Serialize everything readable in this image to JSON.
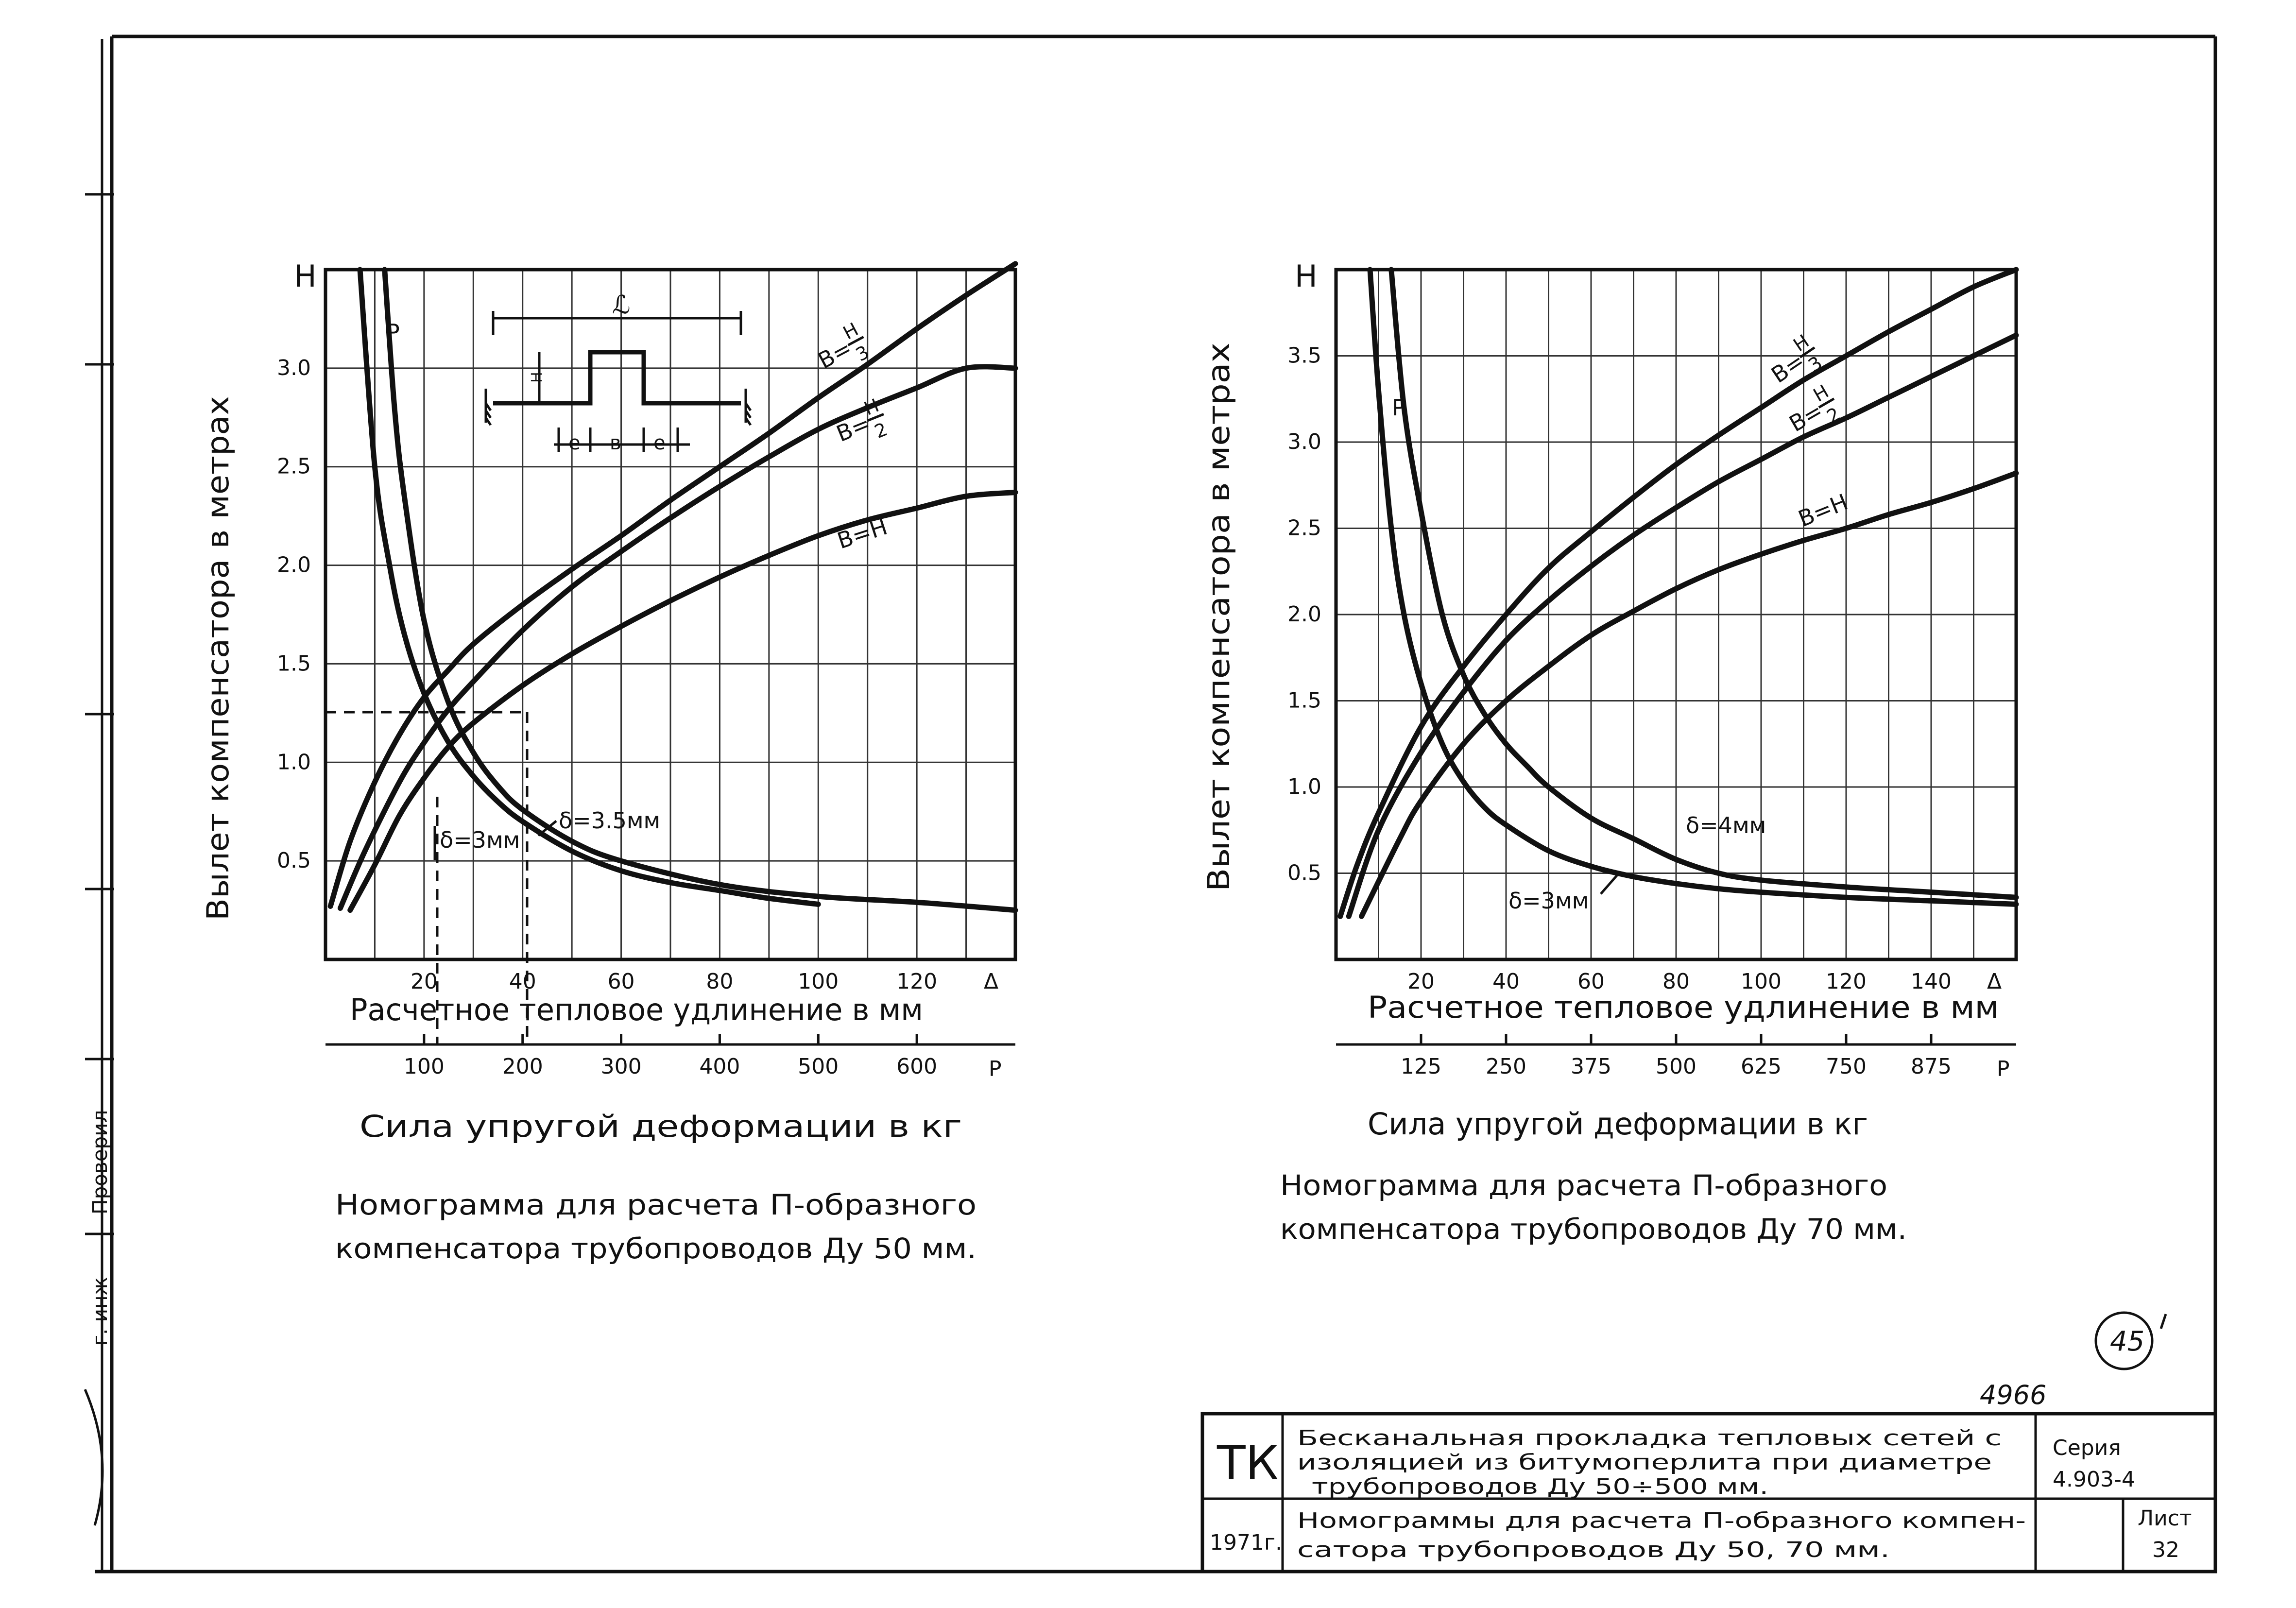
{
  "stamps": {
    "drawing_number": "4966",
    "page_number": "45"
  },
  "side_margin": {
    "checked_label": "Проверил",
    "chief_label": "г. инж"
  },
  "title_block": {
    "logo": "ТК",
    "line1": "Бесканальная прокладка тепловых сетей с",
    "line2": "изоляцией из битумоперлита при диаметре",
    "line3": "трубопроводов Ду 50÷500 мм.",
    "series_label": "Серия",
    "series_value": "4.903-4",
    "year": "1971г.",
    "sheet_title1": "Номограммы для расчета П-образного компен-",
    "sheet_title2": "сатора трубопроводов Ду 50, 70 мм.",
    "sheet_label": "Лист",
    "sheet_number": "32"
  },
  "charts": [
    {
      "ylabel": "Вылет компенсатора в метрах",
      "ymark": "Н",
      "yticks": [
        "3.0",
        "2.5",
        "2.0",
        "1.5",
        "1.0",
        "0.5"
      ],
      "xticks": [
        "20",
        "40",
        "60",
        "80",
        "100",
        "120"
      ],
      "xmark": "Δ",
      "xlabel": "Расчетное тепловое удлинение в мм",
      "pticks": [
        "100",
        "200",
        "300",
        "400",
        "500",
        "600"
      ],
      "pmark": "Р",
      "plabel": "Сила упругой деформации в кг",
      "caption1": "Номограмма для расчета П-образного",
      "caption2": "компенсатора трубопроводов Ду 50 мм.",
      "p_curve_label": "Р",
      "curve_labels": {
        "bh3_prefix": "В=",
        "bh3_num": "Н",
        "bh3_den": "3",
        "bh2_prefix": "В=",
        "bh2_num": "Н",
        "bh2_den": "2",
        "bh": "В=Н",
        "d1": "δ=3мм",
        "d2": "δ=3.5мм"
      },
      "inset": {
        "L": "ℒ",
        "e1": "е",
        "b": "в",
        "e2": "е",
        "h": "Н"
      }
    },
    {
      "ylabel": "Вылет компенсатора в метрах",
      "ymark": "Н",
      "yticks": [
        "3.5",
        "3.0",
        "2.5",
        "2.0",
        "1.5",
        "1.0",
        "0.5"
      ],
      "xticks": [
        "20",
        "40",
        "60",
        "80",
        "100",
        "120",
        "140"
      ],
      "xmark": "Δ",
      "xlabel": "Расчетное тепловое удлинение в мм",
      "pticks": [
        "125",
        "250",
        "375",
        "500",
        "625",
        "750",
        "875"
      ],
      "pmark": "Р",
      "plabel": "Сила упругой деформации в кг",
      "caption1": "Номограмма для расчета П-образного",
      "caption2": "компенсатора трубопроводов Ду 70 мм.",
      "p_curve_label": "Р",
      "curve_labels": {
        "bh3_prefix": "В=",
        "bh3_num": "Н",
        "bh3_den": "3",
        "bh2_prefix": "В=",
        "bh2_num": "Н",
        "bh2_den": "2",
        "bh": "В=Н",
        "d1": "δ=4мм",
        "d2": "δ=3мм"
      }
    }
  ],
  "chart_data": [
    {
      "type": "line",
      "title": "Номограмма для расчета П-образного компенсатора трубопроводов Ду 50 мм.",
      "xlabel": "Расчетное тепловое удлинение в мм",
      "ylabel": "Вылет компенсатора в метрах",
      "secondary_xlabel": "Сила упругой деформации в кг",
      "xlim": [
        0,
        140
      ],
      "ylim": [
        0,
        3.5
      ],
      "pscale": [
        0,
        700
      ],
      "grid": true,
      "series": [
        {
          "name": "В=Н/3",
          "x": [
            1,
            5,
            10,
            15,
            20,
            25,
            30,
            40,
            50,
            60,
            70,
            80,
            90,
            100,
            110,
            120,
            130,
            140
          ],
          "y": [
            0.27,
            0.6,
            0.9,
            1.14,
            1.33,
            1.47,
            1.6,
            1.8,
            1.98,
            2.15,
            2.33,
            2.5,
            2.67,
            2.85,
            3.02,
            3.2,
            3.37,
            3.53
          ]
        },
        {
          "name": "В=Н/2",
          "x": [
            3,
            8,
            15,
            20,
            25,
            30,
            40,
            50,
            60,
            70,
            80,
            90,
            100,
            110,
            120,
            130,
            140
          ],
          "y": [
            0.26,
            0.55,
            0.9,
            1.1,
            1.27,
            1.41,
            1.67,
            1.89,
            2.07,
            2.24,
            2.4,
            2.55,
            2.69,
            2.8,
            2.9,
            3.0,
            3.0
          ]
        },
        {
          "name": "В=Н",
          "x": [
            5,
            10,
            15,
            20,
            25,
            30,
            40,
            50,
            60,
            70,
            80,
            90,
            100,
            110,
            120,
            130,
            140
          ],
          "y": [
            0.25,
            0.48,
            0.73,
            0.92,
            1.08,
            1.2,
            1.39,
            1.55,
            1.69,
            1.82,
            1.94,
            2.05,
            2.15,
            2.23,
            2.29,
            2.35,
            2.37
          ]
        },
        {
          "name": "δ=3мм",
          "x": [
            7,
            10,
            13,
            16,
            20,
            25,
            30,
            35,
            40,
            50,
            60,
            70,
            80,
            90,
            100
          ],
          "y": [
            3.5,
            2.5,
            2.0,
            1.65,
            1.35,
            1.1,
            0.93,
            0.8,
            0.7,
            0.55,
            0.45,
            0.39,
            0.35,
            0.31,
            0.28
          ]
        },
        {
          "name": "δ=3.5мм",
          "x": [
            12,
            14,
            16,
            20,
            25,
            30,
            35,
            40,
            50,
            60,
            80,
            100,
            120,
            140
          ],
          "y": [
            3.5,
            2.8,
            2.35,
            1.72,
            1.3,
            1.05,
            0.88,
            0.76,
            0.6,
            0.5,
            0.38,
            0.32,
            0.29,
            0.25
          ]
        }
      ],
      "annotation": {
        "example_x": 41,
        "example_y": 1.26,
        "example_x2": 20
      }
    },
    {
      "type": "line",
      "title": "Номограмма для расчета П-образного компенсатора трубопроводов Ду 70 мм.",
      "xlabel": "Расчетное тепловое удлинение в мм",
      "ylabel": "Вылет компенсатора в метрах",
      "secondary_xlabel": "Сила упругой деформации в кг",
      "xlim": [
        0,
        160
      ],
      "ylim": [
        0,
        4.0
      ],
      "pscale": [
        0,
        1000
      ],
      "grid": true,
      "series": [
        {
          "name": "В=Н/3",
          "x": [
            1,
            5,
            10,
            20,
            30,
            40,
            50,
            60,
            70,
            80,
            90,
            100,
            110,
            120,
            130,
            140,
            150,
            160
          ],
          "y": [
            0.25,
            0.55,
            0.85,
            1.35,
            1.7,
            2.0,
            2.27,
            2.48,
            2.68,
            2.87,
            3.04,
            3.2,
            3.36,
            3.5,
            3.64,
            3.77,
            3.9,
            4.0
          ]
        },
        {
          "name": "В=Н/2",
          "x": [
            3,
            10,
            20,
            30,
            40,
            50,
            60,
            70,
            80,
            90,
            100,
            110,
            120,
            130,
            140,
            150,
            160
          ],
          "y": [
            0.25,
            0.75,
            1.2,
            1.55,
            1.85,
            2.08,
            2.28,
            2.46,
            2.62,
            2.77,
            2.9,
            3.03,
            3.14,
            3.26,
            3.38,
            3.5,
            3.62
          ]
        },
        {
          "name": "В=Н",
          "x": [
            6,
            15,
            20,
            30,
            40,
            50,
            60,
            70,
            80,
            90,
            100,
            110,
            120,
            130,
            140,
            150,
            160
          ],
          "y": [
            0.25,
            0.7,
            0.92,
            1.25,
            1.5,
            1.7,
            1.88,
            2.02,
            2.15,
            2.26,
            2.35,
            2.43,
            2.5,
            2.58,
            2.65,
            2.73,
            2.82
          ]
        },
        {
          "name": "δ=4мм",
          "x": [
            13,
            16,
            20,
            25,
            30,
            35,
            40,
            45,
            50,
            60,
            70,
            80,
            90,
            100,
            120,
            140,
            160
          ],
          "y": [
            4.0,
            3.2,
            2.6,
            2.0,
            1.65,
            1.42,
            1.25,
            1.12,
            1.0,
            0.82,
            0.7,
            0.58,
            0.5,
            0.46,
            0.42,
            0.39,
            0.36
          ]
        },
        {
          "name": "δ=3мм",
          "x": [
            8,
            10,
            13,
            16,
            20,
            25,
            30,
            35,
            40,
            50,
            60,
            70,
            80,
            90,
            100,
            120,
            140,
            160
          ],
          "y": [
            4.0,
            3.3,
            2.5,
            2.0,
            1.6,
            1.25,
            1.03,
            0.88,
            0.78,
            0.63,
            0.54,
            0.48,
            0.44,
            0.41,
            0.39,
            0.36,
            0.34,
            0.32
          ]
        }
      ]
    }
  ]
}
